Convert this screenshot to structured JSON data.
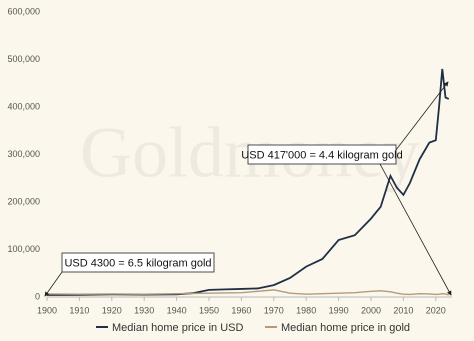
{
  "chart_data": {
    "type": "line",
    "watermark": "Goldmoney",
    "x": [
      1900,
      1910,
      1920,
      1930,
      1940,
      1945,
      1950,
      1955,
      1960,
      1965,
      1970,
      1975,
      1980,
      1985,
      1990,
      1995,
      2000,
      2003,
      2006,
      2008,
      2010,
      2012,
      2015,
      2018,
      2020,
      2021,
      2022,
      2023,
      2024
    ],
    "series": [
      {
        "name": "Median home price in USD",
        "color": "#1f3045",
        "values": [
          4300,
          4500,
          5500,
          5000,
          5500,
          8000,
          15000,
          16000,
          17000,
          18000,
          25000,
          40000,
          64000,
          80000,
          120000,
          130000,
          165000,
          190000,
          255000,
          230000,
          215000,
          240000,
          290000,
          325000,
          330000,
          400000,
          480000,
          420000,
          417000
        ]
      },
      {
        "name": "Median home price in gold",
        "color": "#b59a7a",
        "values": [
          6500,
          6000,
          6500,
          6000,
          7000,
          7500,
          8000,
          8500,
          9000,
          12000,
          15000,
          8000,
          6000,
          7000,
          8000,
          9000,
          12000,
          13000,
          11000,
          8000,
          6000,
          5500,
          7000,
          6500,
          5500,
          6000,
          7000,
          6500,
          4400
        ]
      }
    ],
    "xlim": [
      1900,
      2025
    ],
    "ylim": [
      0,
      600000
    ],
    "xticks": [
      1900,
      1910,
      1920,
      1930,
      1940,
      1950,
      1960,
      1970,
      1980,
      1990,
      2000,
      2010,
      2020
    ],
    "yticks": [
      0,
      {
        "value": 100000,
        "label": "100,000"
      },
      {
        "value": 200000,
        "label": "200,000"
      },
      {
        "value": 300000,
        "label": "300,000"
      },
      {
        "value": 400000,
        "label": "400,000"
      },
      {
        "value": 500000,
        "label": "500,000"
      },
      {
        "value": 600000,
        "label": "600,000"
      }
    ],
    "grid": false,
    "legend": "bottom",
    "annotations": [
      {
        "text": "USD 417'000 = 4.4 kilogram gold"
      },
      {
        "text": "USD 4300 = 6.5 kilogram gold"
      }
    ]
  }
}
